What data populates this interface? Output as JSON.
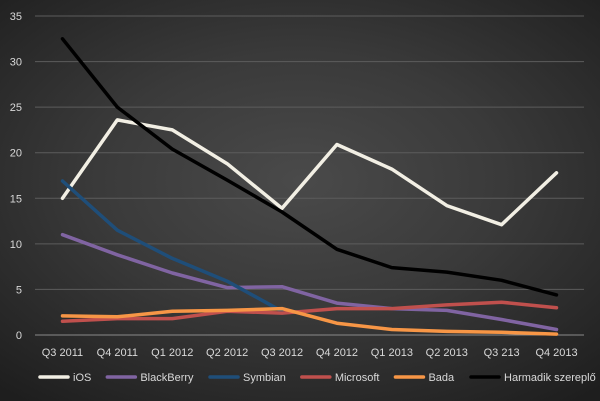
{
  "chart_data": {
    "type": "line",
    "title": "",
    "xlabel": "",
    "ylabel": "",
    "categories": [
      "Q3 2011",
      "Q4 2011",
      "Q1 2012",
      "Q2 2012",
      "Q3 2012",
      "Q4 2012",
      "Q1 2013",
      "Q2 2013",
      "Q3 213",
      "Q4 2013"
    ],
    "ylim": [
      0,
      35
    ],
    "yticks": [
      0,
      5,
      10,
      15,
      20,
      25,
      30,
      35
    ],
    "grid": true,
    "legend_position": "bottom",
    "series": [
      {
        "name": "iOS",
        "color": "#f2efe4",
        "values": [
          15.0,
          23.6,
          22.5,
          18.8,
          13.9,
          20.9,
          18.2,
          14.2,
          12.1,
          17.8
        ]
      },
      {
        "name": "BlackBerry",
        "color": "#8064a2",
        "values": [
          11.0,
          8.8,
          6.8,
          5.2,
          5.3,
          3.5,
          2.9,
          2.7,
          1.7,
          0.6
        ]
      },
      {
        "name": "Symbian",
        "color": "#1f4e79",
        "values": [
          16.9,
          11.5,
          8.4,
          5.9,
          2.6,
          null,
          null,
          null,
          null,
          null
        ]
      },
      {
        "name": "Microsoft",
        "color": "#c0504d",
        "values": [
          1.5,
          1.8,
          1.8,
          2.6,
          2.4,
          2.9,
          2.9,
          3.3,
          3.6,
          3.0
        ]
      },
      {
        "name": "Bada",
        "color": "#f79646",
        "values": [
          2.1,
          2.0,
          2.6,
          2.7,
          2.9,
          1.3,
          0.6,
          0.4,
          0.3,
          0.1
        ]
      },
      {
        "name": "Harmadik szereplő",
        "color": "#000000",
        "values": [
          32.5,
          25.0,
          20.4,
          17.0,
          13.5,
          9.4,
          7.4,
          6.9,
          6.0,
          4.4
        ]
      }
    ]
  }
}
